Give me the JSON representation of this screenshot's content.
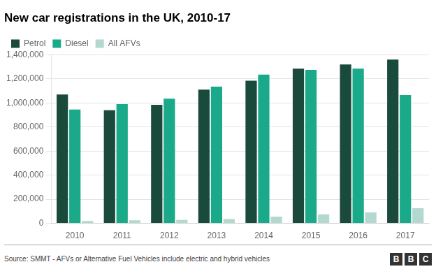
{
  "chart_data": {
    "type": "bar",
    "title": "New car registrations in the UK, 2010-17",
    "categories": [
      "2010",
      "2011",
      "2012",
      "2013",
      "2014",
      "2015",
      "2016",
      "2017"
    ],
    "series": [
      {
        "name": "Petrol",
        "color": "#1a4a3c",
        "values": [
          1070000,
          940000,
          985000,
          1110000,
          1185000,
          1285000,
          1320000,
          1360000
        ]
      },
      {
        "name": "Diesel",
        "color": "#1aaa8a",
        "values": [
          945000,
          990000,
          1035000,
          1135000,
          1235000,
          1275000,
          1285000,
          1065000
        ]
      },
      {
        "name": "All AFVs",
        "color": "#b2d8d0",
        "values": [
          20000,
          25000,
          28000,
          35000,
          55000,
          75000,
          90000,
          125000
        ]
      }
    ],
    "ylim": [
      0,
      1400000
    ],
    "yticks": [
      0,
      {
        "value": 200000,
        "label": "200,000"
      },
      {
        "value": 400000,
        "label": "400,000"
      },
      {
        "value": 600000,
        "label": "600,000"
      },
      {
        "value": 800000,
        "label": "800,000"
      },
      {
        "value": 1000000,
        "label": "1,000,000"
      },
      {
        "value": 1200000,
        "label": "1,200,000"
      },
      {
        "value": 1400000,
        "label": "1,400,000"
      }
    ],
    "grid": true,
    "legend": "top-left",
    "annotations": [
      "Source: SMMT - AFVs or Alternative Fuel Vehicles include electric and hybrid vehicles",
      "BBC"
    ]
  }
}
